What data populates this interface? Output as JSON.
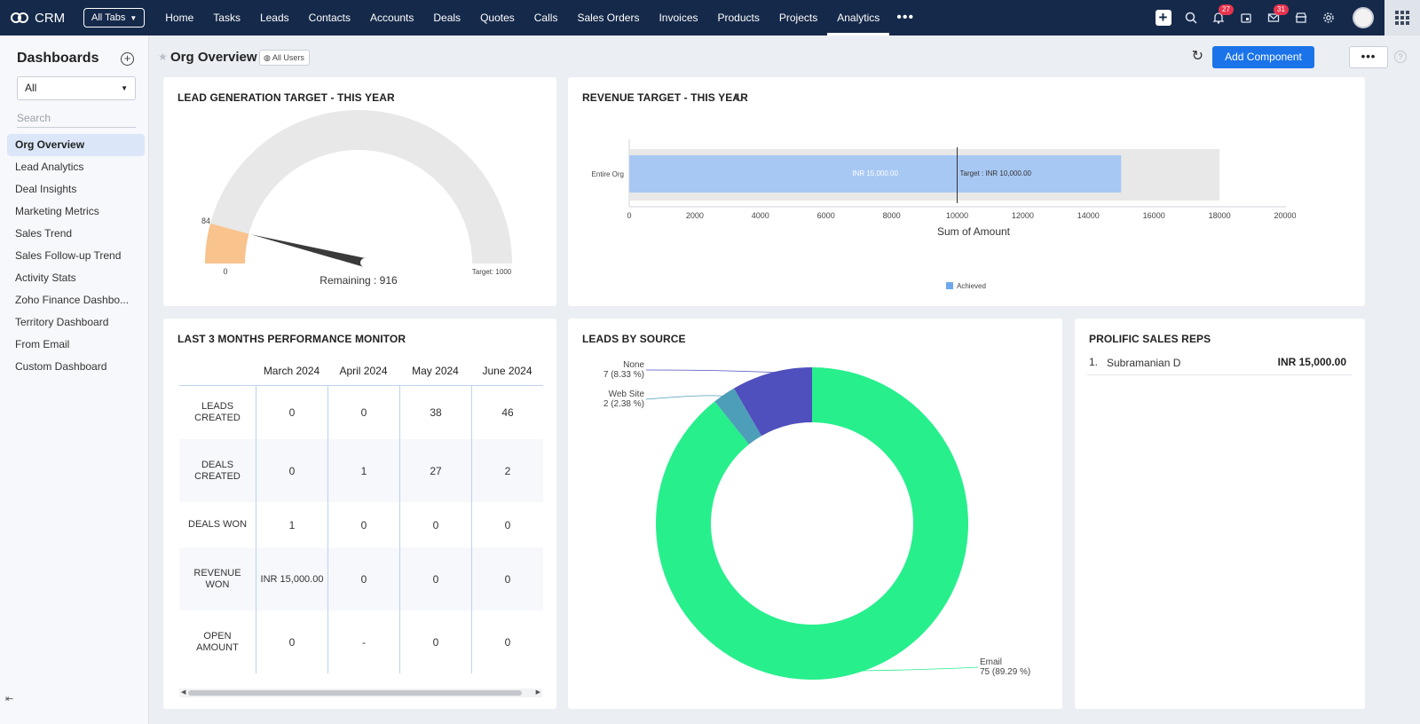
{
  "app": {
    "name": "CRM",
    "all_tabs_label": "All Tabs"
  },
  "nav": {
    "tabs": [
      "Home",
      "Tasks",
      "Leads",
      "Contacts",
      "Accounts",
      "Deals",
      "Quotes",
      "Calls",
      "Sales Orders",
      "Invoices",
      "Products",
      "Projects",
      "Analytics"
    ],
    "active": "Analytics",
    "more_label": "•••",
    "notifications_count": "27",
    "mail_count": "31"
  },
  "sidebar": {
    "title": "Dashboards",
    "filter_value": "All",
    "search_placeholder": "Search",
    "items": [
      "Org Overview",
      "Lead Analytics",
      "Deal Insights",
      "Marketing Metrics",
      "Sales Trend",
      "Sales Follow-up Trend",
      "Activity Stats",
      "Zoho Finance Dashbo...",
      "Territory Dashboard",
      "From Email",
      "Custom Dashboard"
    ],
    "active_index": 0
  },
  "header": {
    "title": "Org Overview",
    "scope_label": "All Users",
    "add_component_label": "Add Component",
    "more_label": "•••",
    "help_label": "?"
  },
  "gauge": {
    "title": "LEAD GENERATION TARGET - THIS YEAR",
    "value": 84,
    "target": 1000,
    "value_label": "84",
    "min_label": "0",
    "target_label": "Target: 1000",
    "remaining_label": "Remaining : 916",
    "colors": {
      "achieved": "#f9c38e",
      "track": "#e8e8e8",
      "needle": "#3a3a3a"
    }
  },
  "revenue": {
    "title": "REVENUE TARGET - THIS YEAR",
    "category": "Entire Org",
    "achieved": 15000,
    "target": 10000,
    "track_max": 18000,
    "achieved_label": "INR 15,000.00",
    "target_label": "Target : INR 10,000.00",
    "ticks": [
      "0",
      "2000",
      "4000",
      "6000",
      "8000",
      "10000",
      "12000",
      "14000",
      "16000",
      "18000",
      "20000"
    ],
    "xlabel": "Sum of Amount",
    "legend": "Achieved",
    "colors": {
      "achieved": "#a8c8f4",
      "track": "#e8e8e8",
      "legend": "#6fa8ee"
    }
  },
  "performance": {
    "title": "LAST 3 MONTHS PERFORMANCE MONITOR",
    "columns": [
      "March 2024",
      "April 2024",
      "May 2024",
      "June 2024"
    ],
    "rows": [
      {
        "label": "LEADS CREATED",
        "values": [
          "0",
          "0",
          "38",
          "46"
        ]
      },
      {
        "label": "DEALS CREATED",
        "values": [
          "0",
          "1",
          "27",
          "2"
        ]
      },
      {
        "label": "DEALS WON",
        "values": [
          "1",
          "0",
          "0",
          "0"
        ]
      },
      {
        "label": "REVENUE WON",
        "values": [
          "INR 15,000.00",
          "0",
          "0",
          "0"
        ]
      },
      {
        "label": "OPEN AMOUNT",
        "values": [
          "0",
          "-",
          "0",
          "0"
        ]
      }
    ]
  },
  "leads_by_source": {
    "title": "LEADS BY SOURCE",
    "slices": [
      {
        "name": "Email",
        "value": 75,
        "pct": "89.29 %",
        "label": "75 (89.29 %)",
        "color": "#27ef8c"
      },
      {
        "name": "Web Site",
        "value": 2,
        "pct": "2.38 %",
        "label": "2 (2.38 %)",
        "color": "#4d9eb8"
      },
      {
        "name": "None",
        "value": 7,
        "pct": "8.33 %",
        "label": "7 (8.33 %)",
        "color": "#4f4fbd"
      }
    ]
  },
  "chart_data": [
    {
      "type": "gauge",
      "title": "LEAD GENERATION TARGET - THIS YEAR",
      "value": 84,
      "min": 0,
      "max": 1000,
      "remaining": 916
    },
    {
      "type": "bar",
      "title": "REVENUE TARGET - THIS YEAR",
      "categories": [
        "Entire Org"
      ],
      "series": [
        {
          "name": "Achieved",
          "values": [
            15000
          ]
        }
      ],
      "target": 10000,
      "xlabel": "Sum of Amount",
      "xlim": [
        0,
        20000
      ],
      "legend": "bottom-center"
    },
    {
      "type": "pie",
      "title": "LEADS BY SOURCE",
      "categories": [
        "Email",
        "Web Site",
        "None"
      ],
      "values": [
        75,
        2,
        7
      ]
    }
  ],
  "reps": {
    "title": "PROLIFIC SALES REPS",
    "items": [
      {
        "rank": "1.",
        "name": "Subramanian D",
        "amount": "INR 15,000.00"
      }
    ]
  }
}
